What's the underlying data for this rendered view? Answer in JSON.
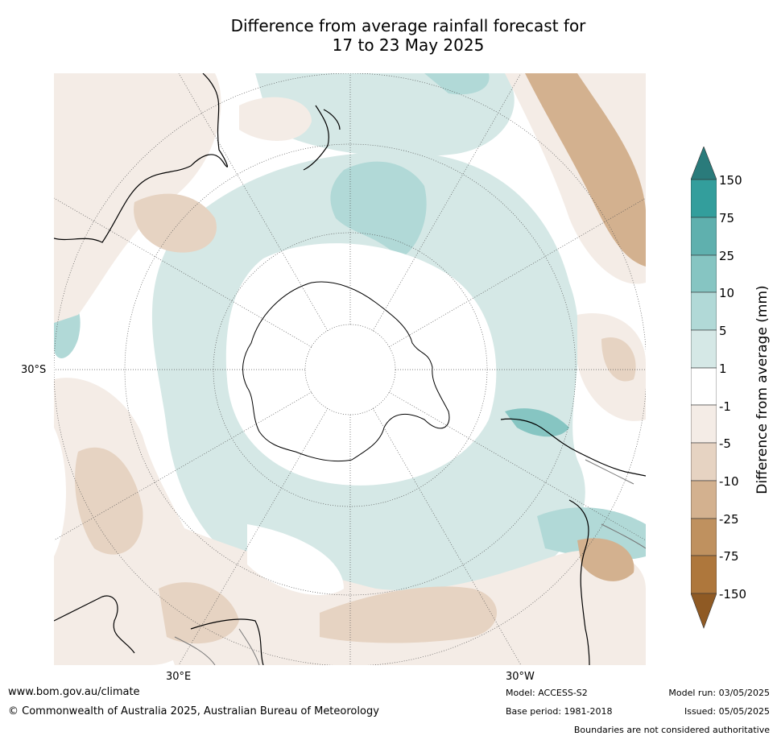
{
  "title_line1": "Difference from average rainfall forecast for",
  "title_line2": "17 to 23 May 2025",
  "map": {
    "projection": "south-polar-stereographic",
    "lat_labels": [
      "30°S"
    ],
    "lon_labels": [
      "30°E",
      "30°W"
    ]
  },
  "colorbar": {
    "title": "Difference from average (mm)",
    "ticks": [
      "150",
      "75",
      "25",
      "10",
      "5",
      "1",
      "-1",
      "-5",
      "-10",
      "-25",
      "-75",
      "-150"
    ],
    "colors": [
      "#2a7b7b",
      "#339e9c",
      "#5fb0ae",
      "#86c5c2",
      "#b1d9d7",
      "#d5e8e6",
      "#ffffff",
      "#f4ece6",
      "#e6d3c2",
      "#d3b18f",
      "#bf915f",
      "#ae773c",
      "#8f5a24"
    ]
  },
  "footer": {
    "url": "www.bom.gov.au/climate",
    "copyright": "© Commonwealth of Australia 2025, Australian Bureau of Meteorology",
    "model": "Model: ACCESS-S2",
    "base_period": "Base period: 1981-2018",
    "model_run": "Model run: 03/05/2025",
    "issued": "Issued: 05/05/2025",
    "disclaimer": "Boundaries are not considered authoritative"
  }
}
